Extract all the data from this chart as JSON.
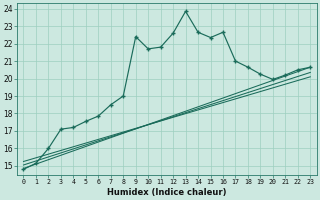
{
  "xlabel": "Humidex (Indice chaleur)",
  "xlim": [
    -0.5,
    23.5
  ],
  "ylim": [
    14.5,
    24.3
  ],
  "xticks": [
    0,
    1,
    2,
    3,
    4,
    5,
    6,
    7,
    8,
    9,
    10,
    11,
    12,
    13,
    14,
    15,
    16,
    17,
    18,
    19,
    20,
    21,
    22,
    23
  ],
  "yticks": [
    15,
    16,
    17,
    18,
    19,
    20,
    21,
    22,
    23,
    24
  ],
  "bg_color": "#cce8e0",
  "line_color": "#1a6b5a",
  "main_line_x": [
    0,
    1,
    2,
    3,
    4,
    5,
    6,
    7,
    8,
    9,
    10,
    11,
    12,
    13,
    14,
    15,
    16,
    17,
    18,
    19,
    20,
    21,
    22,
    23
  ],
  "main_line_y": [
    14.8,
    15.15,
    16.0,
    17.1,
    17.2,
    17.55,
    17.85,
    18.5,
    19.0,
    22.4,
    21.7,
    21.8,
    22.6,
    23.85,
    22.65,
    22.35,
    22.65,
    21.0,
    20.65,
    20.25,
    19.95,
    20.2,
    20.5,
    20.65
  ],
  "ref_lines": [
    {
      "x0": 0.0,
      "y0": 14.85,
      "x1": 23,
      "y1": 20.65
    },
    {
      "x0": 0.0,
      "y0": 15.05,
      "x1": 23,
      "y1": 20.35
    },
    {
      "x0": 0.0,
      "y0": 15.25,
      "x1": 23,
      "y1": 20.1
    }
  ]
}
